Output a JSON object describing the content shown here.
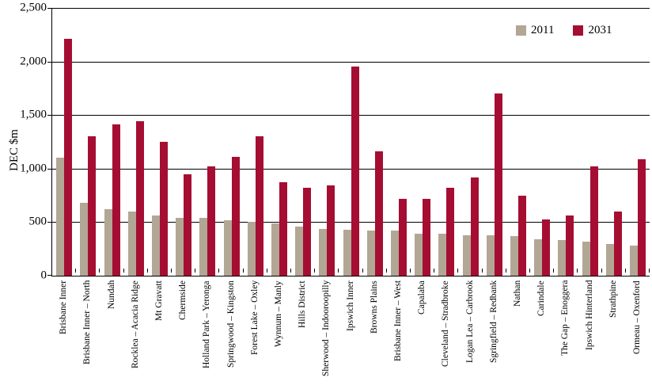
{
  "chart_data": {
    "type": "bar",
    "title": "",
    "xlabel": "",
    "ylabel": "DEC $m",
    "ylim": [
      0,
      2500
    ],
    "ytick_step": 500,
    "ytick_labels": [
      "0",
      "500",
      "1,000",
      "1,500",
      "2,000",
      "2,500"
    ],
    "grid": "horizontal",
    "legend_position": "top-right",
    "categories": [
      "Brisbane Inner",
      "Brisbane Inner – North",
      "Nundah",
      "Rocklea – Acacia Ridge",
      "Mt Gravatt",
      "Chermside",
      "Holland Park – Yeronga",
      "Springwood – Kingston",
      "Forest Lake – Oxley",
      "Wynnum – Manly",
      "Hills District",
      "Sherwood – Indooroopilly",
      "Ipswich Inner",
      "Browns Plains",
      "Brisbane Inner – West",
      "Capalaba",
      "Cleveland – Stradbroke",
      "Logan Lea – Carbrook",
      "Sgringfield – Redbank",
      "Nathan",
      "Carindale",
      "The Gap – Enoggera",
      "Ipswich Hinterland",
      "Strathpine",
      "Ormeau – Oxenford"
    ],
    "series": [
      {
        "name": "2011",
        "color": "#B2A695",
        "values": [
          1100,
          680,
          620,
          600,
          560,
          540,
          540,
          520,
          500,
          490,
          460,
          440,
          430,
          420,
          420,
          390,
          390,
          380,
          375,
          370,
          340,
          335,
          315,
          295,
          285
        ]
      },
      {
        "name": "2031",
        "color": "#A50E32",
        "values": [
          2210,
          1300,
          1410,
          1440,
          1250,
          950,
          1020,
          1110,
          1300,
          875,
          825,
          845,
          1950,
          1165,
          720,
          715,
          825,
          920,
          1700,
          745,
          525,
          565,
          1020,
          600,
          1090
        ]
      }
    ]
  },
  "colors": {
    "axis": "#000000",
    "background": "#FFFFFF"
  }
}
